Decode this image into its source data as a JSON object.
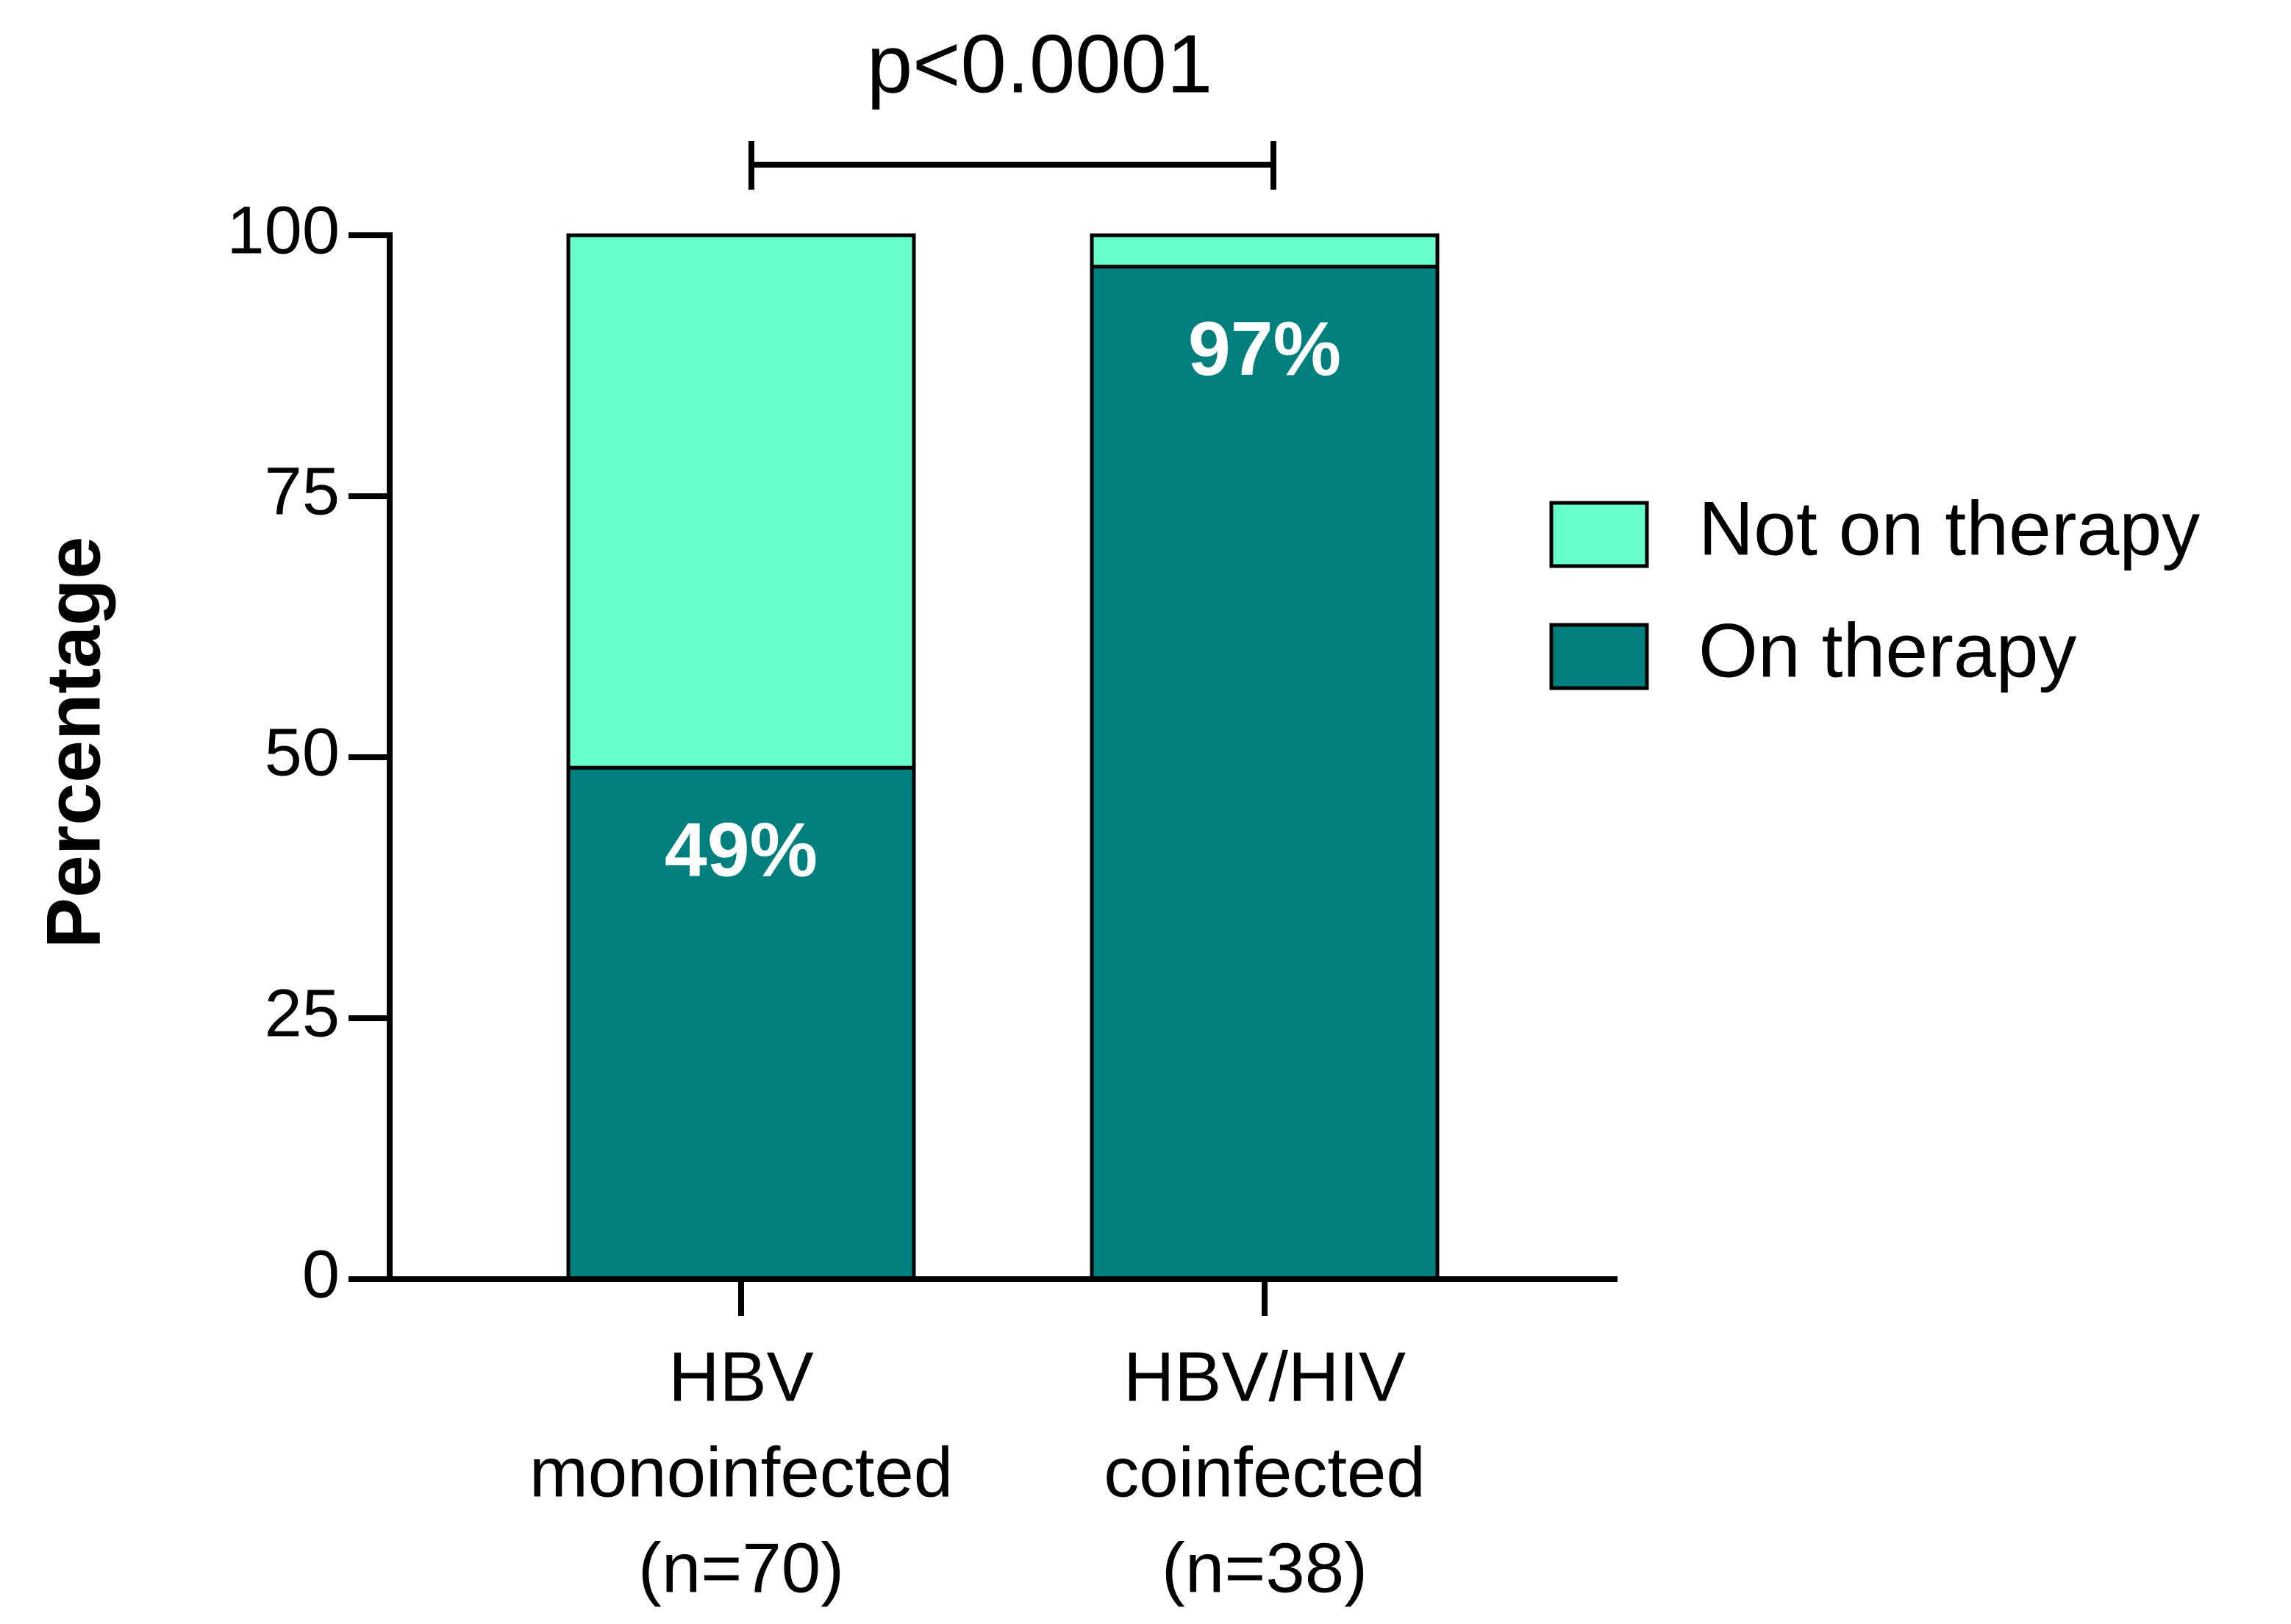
{
  "chart_data": {
    "type": "stacked-bar",
    "annotation": "p<0.0001",
    "y_label": "Percentage",
    "categories": [
      [
        "HBV",
        "monoinfected",
        "(n=70)"
      ],
      [
        "HBV/HIV",
        "coinfected",
        "(n=38)"
      ]
    ],
    "series": [
      {
        "name": "On therapy",
        "color": "#007f7f",
        "values": [
          49,
          97
        ],
        "value_labels": [
          "49%",
          "97%"
        ]
      },
      {
        "name": "Not on therapy",
        "color": "#66ffcc",
        "values": [
          51,
          3
        ]
      }
    ],
    "ylim": [
      0,
      100
    ],
    "yticks": [
      0,
      25,
      50,
      75,
      100
    ],
    "grid": false,
    "legend": "right"
  }
}
